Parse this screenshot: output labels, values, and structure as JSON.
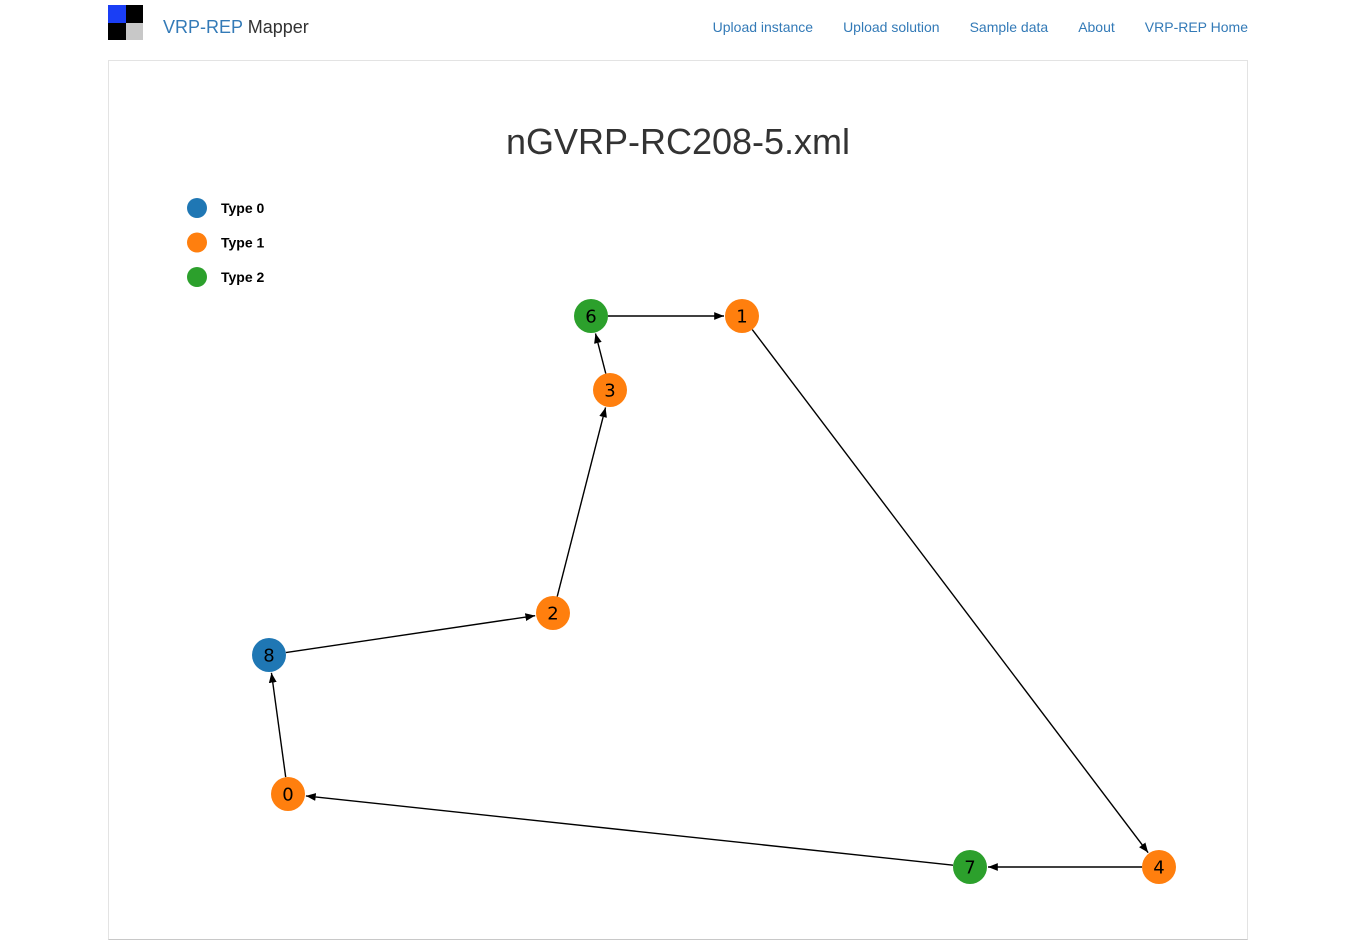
{
  "navbar": {
    "brand_part1": "VRP-REP",
    "brand_part2": " Mapper",
    "logo_colors": [
      "#1a3ef5",
      "#000000",
      "#000000",
      "#c8c8c8"
    ],
    "links": [
      {
        "label": "Upload instance"
      },
      {
        "label": "Upload solution"
      },
      {
        "label": "Sample data"
      },
      {
        "label": "About"
      },
      {
        "label": "VRP-REP Home"
      }
    ]
  },
  "main": {
    "title": "nGVRP-RC208-5.xml"
  },
  "legend": [
    {
      "label": "Type 0",
      "color": "#1f77b4"
    },
    {
      "label": "Type 1",
      "color": "#ff7f0e"
    },
    {
      "label": "Type 2",
      "color": "#2ca02c"
    }
  ],
  "graph": {
    "nodes": [
      {
        "id": "0",
        "type": 1
      },
      {
        "id": "1",
        "type": 1
      },
      {
        "id": "2",
        "type": 1
      },
      {
        "id": "3",
        "type": 1
      },
      {
        "id": "4",
        "type": 1
      },
      {
        "id": "6",
        "type": 2
      },
      {
        "id": "7",
        "type": 2
      },
      {
        "id": "8",
        "type": 0
      }
    ],
    "edges": [
      {
        "from": "6",
        "to": "1"
      },
      {
        "from": "1",
        "to": "4"
      },
      {
        "from": "4",
        "to": "7"
      },
      {
        "from": "7",
        "to": "0"
      },
      {
        "from": "0",
        "to": "8"
      },
      {
        "from": "8",
        "to": "2"
      },
      {
        "from": "2",
        "to": "3"
      },
      {
        "from": "3",
        "to": "6"
      }
    ]
  }
}
